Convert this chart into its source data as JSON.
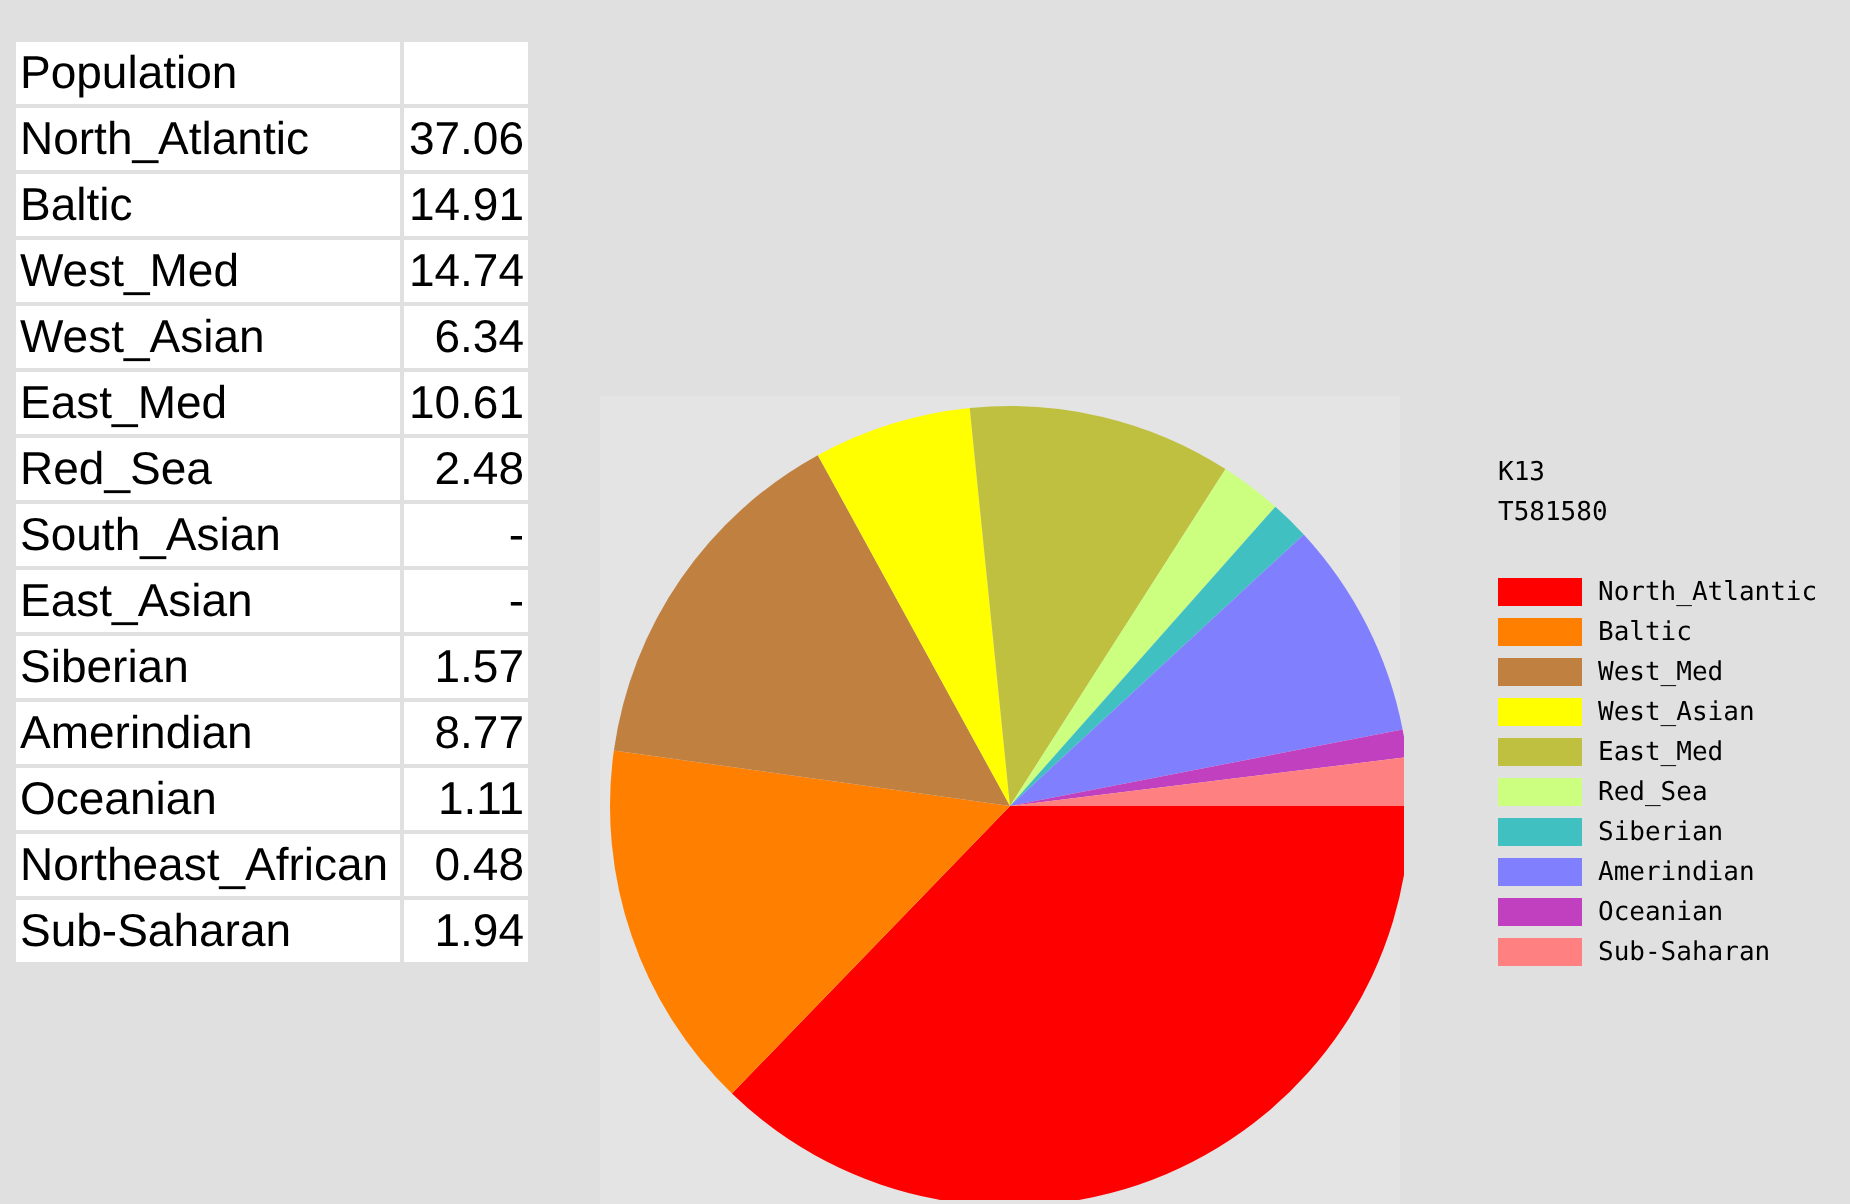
{
  "chart_data": [
    {
      "type": "other",
      "title": "Population",
      "categories": [
        "North_Atlantic",
        "Baltic",
        "West_Med",
        "West_Asian",
        "East_Med",
        "Red_Sea",
        "South_Asian",
        "East_Asian",
        "Siberian",
        "Amerindian",
        "Oceanian",
        "Northeast_African",
        "Sub-Saharan"
      ],
      "value_labels": [
        "37.06",
        "14.91",
        "14.74",
        "6.34",
        "10.61",
        "2.48",
        "-",
        "-",
        "1.57",
        "8.77",
        "1.11",
        "0.48",
        "1.94"
      ]
    },
    {
      "type": "pie",
      "title": "K13",
      "subtitle": "T581580",
      "categories": [
        "North_Atlantic",
        "Baltic",
        "West_Med",
        "West_Asian",
        "East_Med",
        "Red_Sea",
        "Siberian",
        "Amerindian",
        "Oceanian",
        "Sub-Saharan"
      ],
      "values": [
        37.06,
        14.91,
        14.74,
        6.34,
        10.61,
        2.48,
        1.57,
        8.77,
        1.11,
        1.94
      ],
      "colors": [
        "#ff0000",
        "#ff8000",
        "#c08040",
        "#ffff00",
        "#c0c040",
        "#ccff80",
        "#40c0c0",
        "#8080ff",
        "#c040c0",
        "#ff8080"
      ],
      "legend": "right"
    }
  ]
}
